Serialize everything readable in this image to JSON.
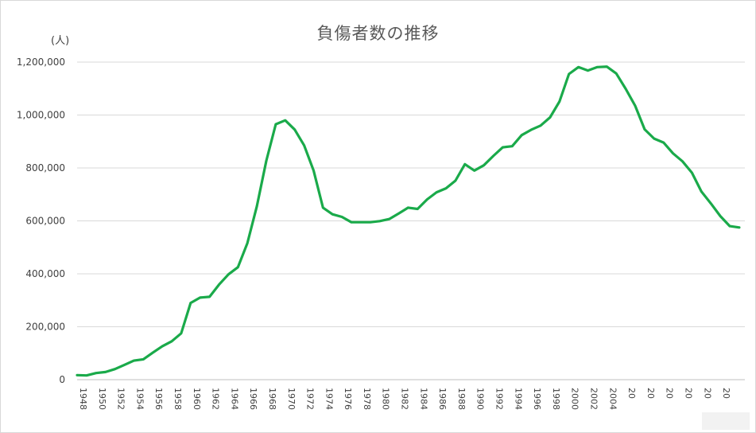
{
  "chart_data": {
    "type": "line",
    "title": "負傷者数の推移",
    "ylabel": "(人)",
    "xlabel": "",
    "ylim": [
      0,
      1200000
    ],
    "yticks": [
      "0",
      "200,000",
      "400,000",
      "600,000",
      "800,000",
      "1,000,000",
      "1,200,000"
    ],
    "ytick_values": [
      0,
      200000,
      400000,
      600000,
      800000,
      1000000,
      1200000
    ],
    "xtick_labels": [
      "1948",
      "1950",
      "1952",
      "1954",
      "1956",
      "1958",
      "1960",
      "1962",
      "1964",
      "1966",
      "1968",
      "1970",
      "1972",
      "1974",
      "1976",
      "1978",
      "1980",
      "1982",
      "1984",
      "1986",
      "1988",
      "1990",
      "1992",
      "1994",
      "1996",
      "1998",
      "2000",
      "2002",
      "2004",
      "20",
      "20",
      "20",
      "20",
      "20",
      "20"
    ],
    "x": [
      1948,
      1949,
      1950,
      1951,
      1952,
      1953,
      1954,
      1955,
      1956,
      1957,
      1958,
      1959,
      1960,
      1961,
      1962,
      1963,
      1964,
      1965,
      1966,
      1967,
      1968,
      1969,
      1970,
      1971,
      1972,
      1973,
      1974,
      1975,
      1976,
      1977,
      1978,
      1979,
      1980,
      1981,
      1982,
      1983,
      1984,
      1985,
      1986,
      1987,
      1988,
      1989,
      1990,
      1991,
      1992,
      1993,
      1994,
      1995,
      1996,
      1997,
      1998,
      1999,
      2000,
      2001,
      2002,
      2003,
      2004,
      2005,
      2006,
      2007,
      2008,
      2009,
      2010,
      2011,
      2012,
      2013,
      2014,
      2015,
      2016,
      2017,
      2018
    ],
    "series": [
      {
        "name": "",
        "color": "#1aaa4a",
        "values": [
          17000,
          16000,
          25000,
          29000,
          40000,
          56000,
          72000,
          77000,
          102000,
          126000,
          145000,
          175000,
          290000,
          310000,
          313000,
          359000,
          398000,
          425000,
          516000,
          655000,
          827000,
          965000,
          980000,
          945000,
          885000,
          790000,
          650000,
          625000,
          615000,
          595000,
          595000,
          595000,
          599000,
          607000,
          628000,
          650000,
          645000,
          681000,
          708000,
          723000,
          752000,
          814000,
          790000,
          810000,
          845000,
          878000,
          882000,
          924000,
          944000,
          960000,
          991000,
          1051000,
          1155000,
          1181000,
          1168000,
          1181000,
          1183000,
          1157000,
          1099000,
          1035000,
          946000,
          911000,
          896000,
          855000,
          825000,
          782000,
          711000,
          666000,
          618000,
          580000,
          575000
        ]
      }
    ],
    "grid": "horizontal",
    "legend": "none"
  }
}
